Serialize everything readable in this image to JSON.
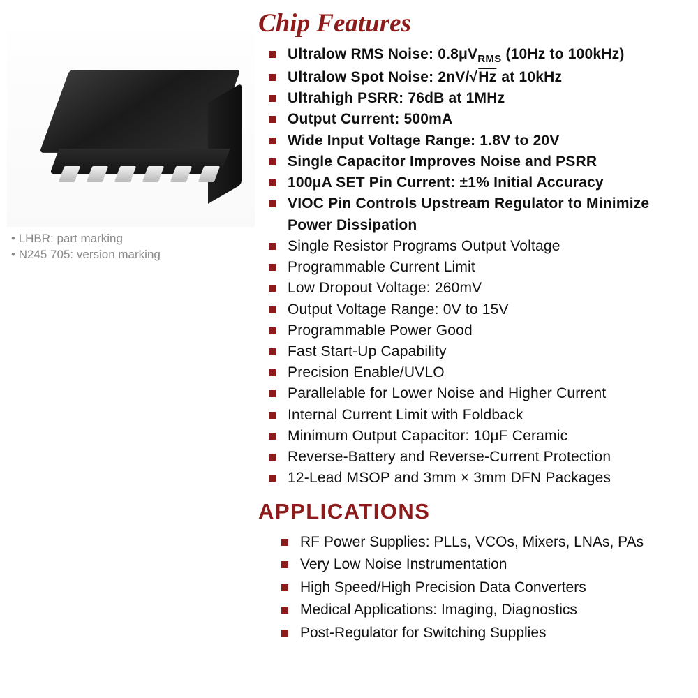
{
  "colors": {
    "heading": "#8e1b1b",
    "bullet": "#8e1b1b",
    "text": "#111111",
    "note_text": "#888888",
    "chip_dark": "#1a1a1a",
    "chip_light": "#3a3a3a",
    "pin_light": "#f2f2f2",
    "pin_dark": "#b8b8b8",
    "bg": "#ffffff"
  },
  "typography": {
    "features_heading_fontsize": 37,
    "apps_heading_fontsize": 31,
    "list_fontsize": 21,
    "note_fontsize": 17
  },
  "chip": {
    "pin_count": 6,
    "notes": [
      "LHBR: part marking",
      "N245 705: version marking"
    ]
  },
  "headings": {
    "features": "Chip Features",
    "applications": "APPLICATIONS"
  },
  "features": [
    {
      "html": "Ultralow RMS Noise: 0.8μV<span class='sub'>RMS</span> (10Hz to 100kHz)",
      "bold": true
    },
    {
      "html": "Ultralow Spot Noise: 2nV/√<span class='sqrt'>Hz</span> at 10kHz",
      "bold": true
    },
    {
      "html": "Ultrahigh PSRR: 76dB at 1MHz",
      "bold": true
    },
    {
      "html": "Output Current: 500mA",
      "bold": true
    },
    {
      "html": "Wide Input Voltage Range: 1.8V to 20V",
      "bold": true
    },
    {
      "html": "Single Capacitor Improves Noise and PSRR",
      "bold": true
    },
    {
      "html": "100μA SET Pin Current: ±1% Initial Accuracy",
      "bold": true
    },
    {
      "html": "VIOC Pin Controls Upstream Regulator to Minimize Power Dissipation",
      "bold": true
    },
    {
      "html": "Single Resistor Programs Output Voltage",
      "bold": false
    },
    {
      "html": "Programmable Current Limit",
      "bold": false
    },
    {
      "html": "Low Dropout Voltage: 260mV",
      "bold": false
    },
    {
      "html": "Output Voltage Range: 0V to 15V",
      "bold": false
    },
    {
      "html": "Programmable Power Good",
      "bold": false
    },
    {
      "html": "Fast Start-Up Capability",
      "bold": false
    },
    {
      "html": "Precision Enable/UVLO",
      "bold": false
    },
    {
      "html": "Parallelable for Lower Noise and Higher Current",
      "bold": false
    },
    {
      "html": "Internal Current Limit with Foldback",
      "bold": false
    },
    {
      "html": "Minimum Output Capacitor: 10μF Ceramic",
      "bold": false
    },
    {
      "html": "Reverse-Battery and Reverse-Current Protection",
      "bold": false
    },
    {
      "html": "12-Lead MSOP and 3mm × 3mm DFN Packages",
      "bold": false
    }
  ],
  "applications": [
    "RF Power Supplies: PLLs, VCOs, Mixers, LNAs, PAs",
    "Very Low Noise Instrumentation",
    "High Speed/High Precision Data Converters",
    "Medical Applications: Imaging, Diagnostics",
    "Post-Regulator for Switching Supplies"
  ]
}
